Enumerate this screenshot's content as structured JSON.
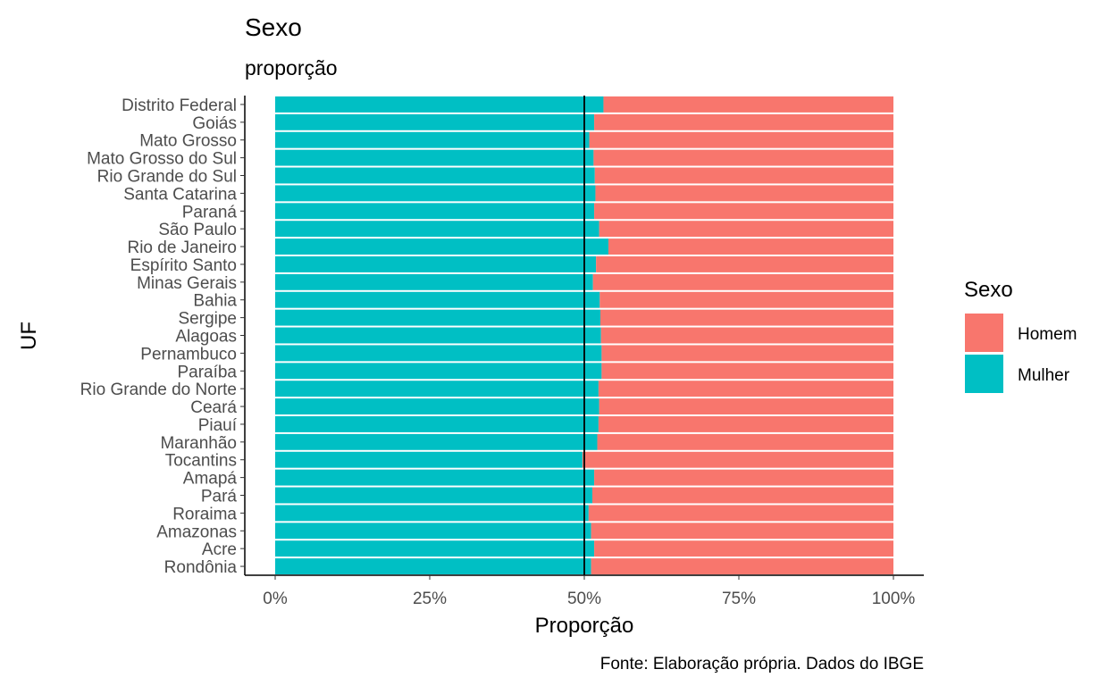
{
  "chart_data": {
    "type": "bar",
    "orientation": "horizontal",
    "stacked": "fill",
    "title": "Sexo",
    "subtitle": "proporção",
    "xlabel": "Proporção",
    "ylabel": "UF",
    "caption": "Fonte: Elaboração própria. Dados do IBGE",
    "xlim": [
      0,
      1
    ],
    "xticks": [
      0,
      0.25,
      0.5,
      0.75,
      1
    ],
    "xtick_labels": [
      "0%",
      "25%",
      "50%",
      "75%",
      "100%"
    ],
    "reference_line_x": 0.5,
    "grid": false,
    "legend": {
      "title": "Sexo",
      "position": "right",
      "entries": [
        {
          "label": "Homem",
          "color": "#F8766D"
        },
        {
          "label": "Mulher",
          "color": "#00BFC4"
        }
      ]
    },
    "categories": [
      "Distrito Federal",
      "Goiás",
      "Mato Grosso",
      "Mato Grosso do Sul",
      "Rio Grande do Sul",
      "Santa Catarina",
      "Paraná",
      "São Paulo",
      "Rio de Janeiro",
      "Espírito Santo",
      "Minas Gerais",
      "Bahia",
      "Sergipe",
      "Alagoas",
      "Pernambuco",
      "Paraíba",
      "Rio Grande do Norte",
      "Ceará",
      "Piauí",
      "Maranhão",
      "Tocantins",
      "Amapá",
      "Pará",
      "Roraima",
      "Amazonas",
      "Acre",
      "Rondônia"
    ],
    "series": [
      {
        "name": "Mulher",
        "color": "#00BFC4",
        "values": [
          0.531,
          0.516,
          0.508,
          0.515,
          0.517,
          0.518,
          0.516,
          0.524,
          0.539,
          0.519,
          0.514,
          0.525,
          0.526,
          0.527,
          0.528,
          0.528,
          0.523,
          0.524,
          0.523,
          0.521,
          0.497,
          0.516,
          0.513,
          0.507,
          0.511,
          0.516,
          0.511
        ]
      },
      {
        "name": "Homem",
        "color": "#F8766D",
        "values": [
          0.469,
          0.484,
          0.492,
          0.485,
          0.483,
          0.482,
          0.484,
          0.476,
          0.461,
          0.481,
          0.486,
          0.475,
          0.474,
          0.473,
          0.472,
          0.472,
          0.477,
          0.476,
          0.477,
          0.479,
          0.503,
          0.484,
          0.487,
          0.493,
          0.489,
          0.484,
          0.489
        ]
      }
    ]
  }
}
